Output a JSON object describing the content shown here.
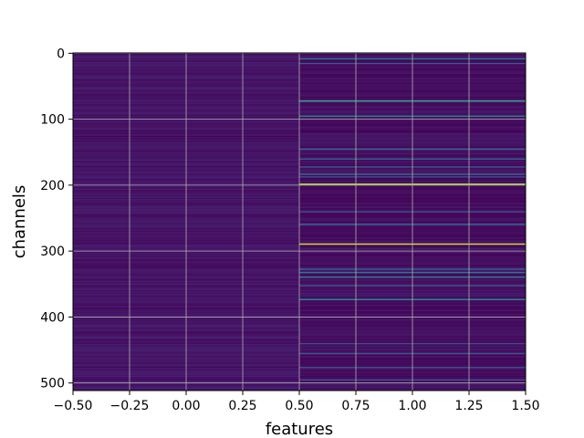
{
  "chart_data": {
    "type": "heatmap",
    "title": "",
    "xlabel": "features",
    "ylabel": "channels",
    "xlim": [
      -0.5,
      1.5
    ],
    "ylim": [
      511.5,
      -0.5
    ],
    "x_ticks": [
      -0.5,
      -0.25,
      0.0,
      0.25,
      0.5,
      0.75,
      1.0,
      1.25,
      1.5
    ],
    "x_tick_labels": [
      "−0.50",
      "−0.25",
      "0.00",
      "0.25",
      "0.50",
      "0.75",
      "1.00",
      "1.25",
      "1.50"
    ],
    "y_ticks": [
      0,
      100,
      200,
      300,
      400,
      500
    ],
    "y_tick_labels": [
      "0",
      "100",
      "200",
      "300",
      "400",
      "500"
    ],
    "grid": true,
    "colormap": "viridis",
    "rows": 512,
    "columns": [
      {
        "feature_index": 0,
        "description": "uniformly low values with faint per-channel variation",
        "base_value": 0.07,
        "highlights": []
      },
      {
        "feature_index": 1,
        "description": "low background with sparse bright channels",
        "base_value": 0.05,
        "highlights": [
          {
            "row": 8,
            "value": 0.5
          },
          {
            "row": 15,
            "value": 0.35
          },
          {
            "row": 72,
            "value": 0.7
          },
          {
            "row": 95,
            "value": 0.55
          },
          {
            "row": 145,
            "value": 0.45
          },
          {
            "row": 160,
            "value": 0.4
          },
          {
            "row": 172,
            "value": 0.35
          },
          {
            "row": 183,
            "value": 0.45
          },
          {
            "row": 187,
            "value": 0.3
          },
          {
            "row": 198,
            "value": 0.9
          },
          {
            "row": 240,
            "value": 0.3
          },
          {
            "row": 259,
            "value": 0.5
          },
          {
            "row": 289,
            "value": 0.95
          },
          {
            "row": 327,
            "value": 0.4
          },
          {
            "row": 332,
            "value": 0.5
          },
          {
            "row": 339,
            "value": 0.55
          },
          {
            "row": 352,
            "value": 0.35
          },
          {
            "row": 373,
            "value": 0.6
          },
          {
            "row": 440,
            "value": 0.3
          },
          {
            "row": 455,
            "value": 0.35
          },
          {
            "row": 476,
            "value": 0.3
          },
          {
            "row": 495,
            "value": 0.35
          }
        ]
      }
    ]
  }
}
